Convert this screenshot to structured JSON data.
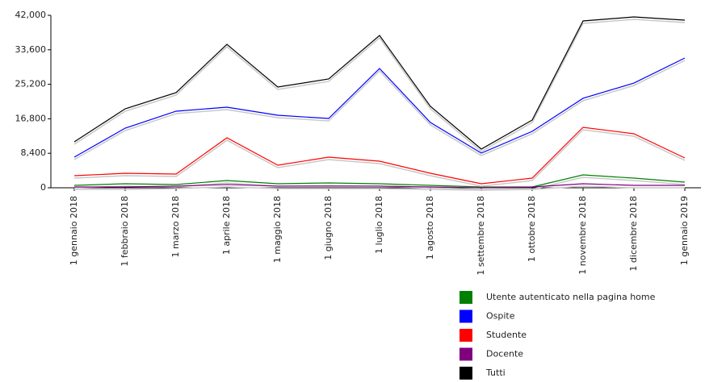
{
  "chart_data": {
    "type": "line",
    "categories": [
      "1 gennaio 2018",
      "1 febbraio 2018",
      "1 marzo 2018",
      "1 aprile 2018",
      "1 maggio 2018",
      "1 giugno 2018",
      "1 luglio 2018",
      "1 agosto 2018",
      "1 settembre 2018",
      "1 ottobre 2018",
      "1 novembre 2018",
      "1 dicembre 2018",
      "1 gennaio 2019"
    ],
    "series": [
      {
        "name": "Utente autenticato nella pagina home",
        "color": "#008000",
        "values": [
          590,
          980,
          790,
          1770,
          980,
          1180,
          980,
          590,
          200,
          200,
          3140,
          2350,
          1370
        ]
      },
      {
        "name": "Ospite",
        "color": "#0000ff",
        "values": [
          7460,
          14520,
          18650,
          19630,
          17660,
          16880,
          29050,
          15900,
          8440,
          13740,
          21790,
          25510,
          31600
        ]
      },
      {
        "name": "Studente",
        "color": "#ff0000",
        "values": [
          2940,
          3530,
          3340,
          12170,
          5500,
          7460,
          6480,
          3530,
          980,
          2350,
          14720,
          13150,
          7260
        ]
      },
      {
        "name": "Docente",
        "color": "#800080",
        "values": [
          200,
          200,
          400,
          800,
          400,
          400,
          400,
          200,
          0,
          200,
          980,
          590,
          590
        ]
      },
      {
        "name": "Tutti",
        "color": "#000000",
        "values": [
          11190,
          19230,
          23160,
          34930,
          24530,
          26500,
          37090,
          19820,
          9420,
          16490,
          40630,
          41600,
          40820
        ]
      }
    ],
    "ylim": [
      0,
      42000
    ],
    "yticks": [
      0,
      {
        "value": 8400,
        "label": "8,400"
      },
      {
        "value": 16800,
        "label": "16,800"
      },
      {
        "value": 25200,
        "label": "25,200"
      },
      {
        "value": 33600,
        "label": "33,600"
      },
      {
        "value": 42000,
        "label": "42,000"
      }
    ],
    "legend": "bottom-right"
  }
}
